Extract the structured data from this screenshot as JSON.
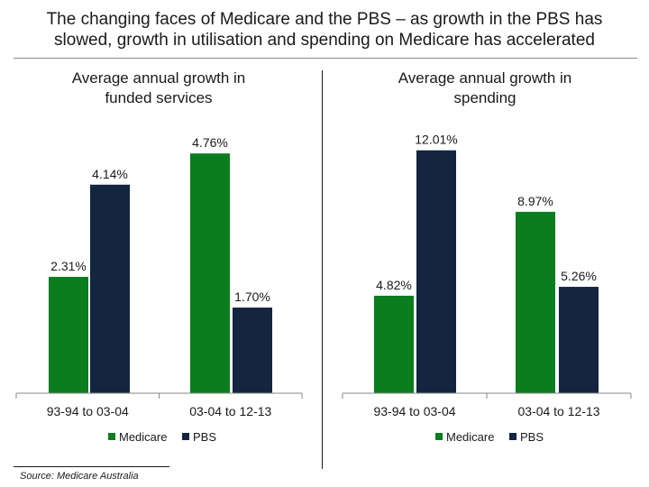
{
  "title_lines": [
    "The changing faces of Medicare and the PBS – as growth in the PBS has",
    "slowed, growth in utilisation and spending on Medicare has accelerated"
  ],
  "source": "Source: Medicare Australia",
  "colors": {
    "Medicare": "#0b7d1f",
    "PBS": "#13253f"
  },
  "chart_data": [
    {
      "type": "bar",
      "title_lines": [
        "Average annual growth in",
        "funded services"
      ],
      "categories": [
        "93-94 to 03-04",
        "03-04 to 12-13"
      ],
      "series": [
        {
          "name": "Medicare",
          "values": [
            2.31,
            4.76
          ],
          "labels": [
            "2.31%",
            "4.76%"
          ]
        },
        {
          "name": "PBS",
          "values": [
            4.14,
            1.7
          ],
          "labels": [
            "4.14%",
            "1.70%"
          ]
        }
      ],
      "ylim": [
        0,
        5.3
      ],
      "legend": "bottom",
      "grid": false
    },
    {
      "type": "bar",
      "title_lines": [
        "Average annual growth in",
        "spending"
      ],
      "categories": [
        "93-94 to 03-04",
        "03-04 to 12-13"
      ],
      "series": [
        {
          "name": "Medicare",
          "values": [
            4.82,
            8.97
          ],
          "labels": [
            "4.82%",
            "8.97%"
          ]
        },
        {
          "name": "PBS",
          "values": [
            12.01,
            5.26
          ],
          "labels": [
            "12.01%",
            "5.26%"
          ]
        }
      ],
      "ylim": [
        0,
        13.2
      ],
      "legend": "bottom",
      "grid": false
    }
  ]
}
